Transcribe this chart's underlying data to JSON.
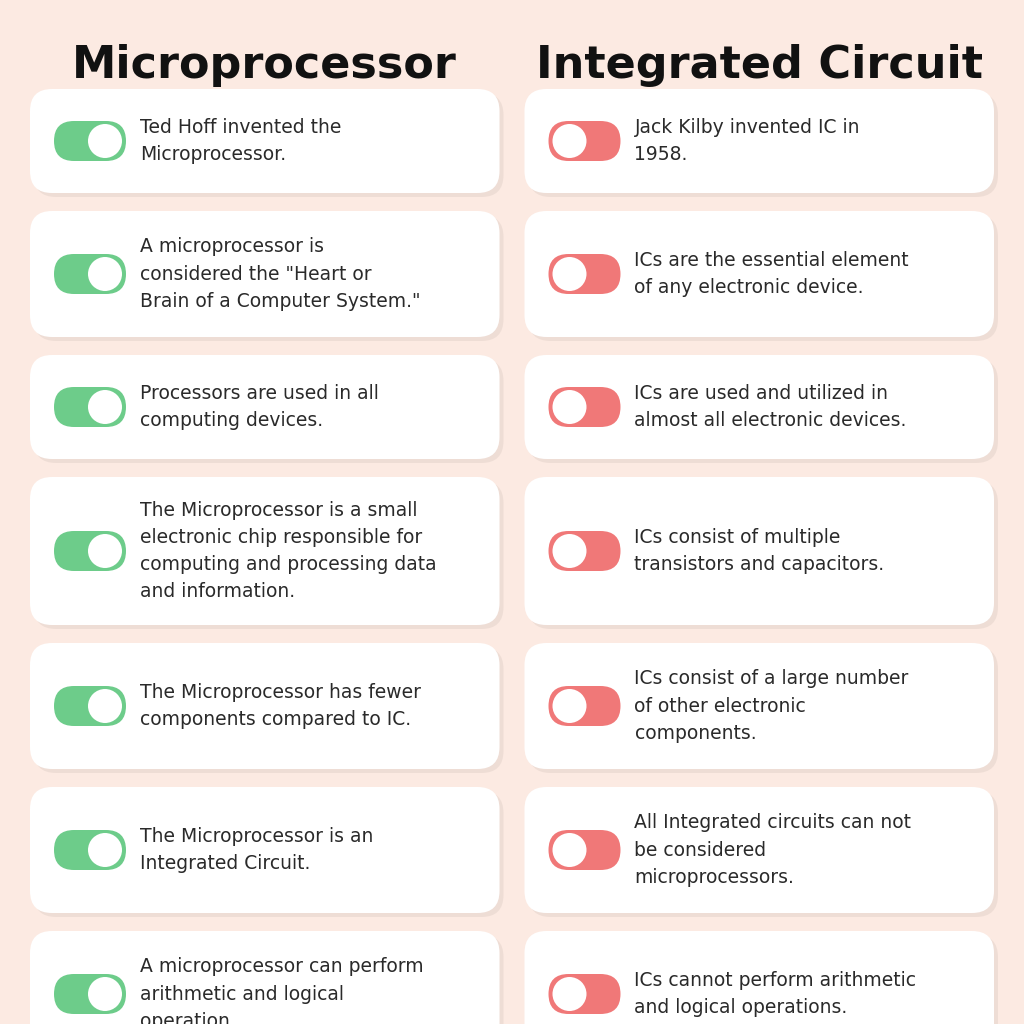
{
  "title_left": "Microprocessor",
  "title_right": "Integrated Circuit",
  "bg_color": "#fceae2",
  "card_color": "#ffffff",
  "toggle_green": "#6dcc8a",
  "toggle_red": "#f07878",
  "title_color": "#111111",
  "text_color": "#2a2a2a",
  "left_items": [
    "Ted Hoff invented the\nMicroprocessor.",
    "A microprocessor is\nconsidered the \"Heart or\nBrain of a Computer System.\"",
    "Processors are used in all\ncomputing devices.",
    "The Microprocessor is a small\nelectronic chip responsible for\ncomputing and processing data\nand information.",
    "The Microprocessor has fewer\ncomponents compared to IC.",
    "The Microprocessor is an\nIntegrated Circuit.",
    "A microprocessor can perform\narithmetic and logical\noperation"
  ],
  "right_items": [
    "Jack Kilby invented IC in\n1958.",
    "ICs are the essential element\nof any electronic device.",
    "ICs are used and utilized in\nalmost all electronic devices.",
    "ICs consist of multiple\ntransistors and capacitors.",
    "ICs consist of a large number\nof other electronic\ncomponents.",
    "All Integrated circuits can not\nbe considered\nmicroprocessors.",
    "ICs cannot perform arithmetic\nand logical operations."
  ],
  "left_lines": [
    2,
    3,
    2,
    4,
    2,
    2,
    3
  ],
  "right_lines": [
    2,
    2,
    2,
    2,
    3,
    3,
    2
  ]
}
